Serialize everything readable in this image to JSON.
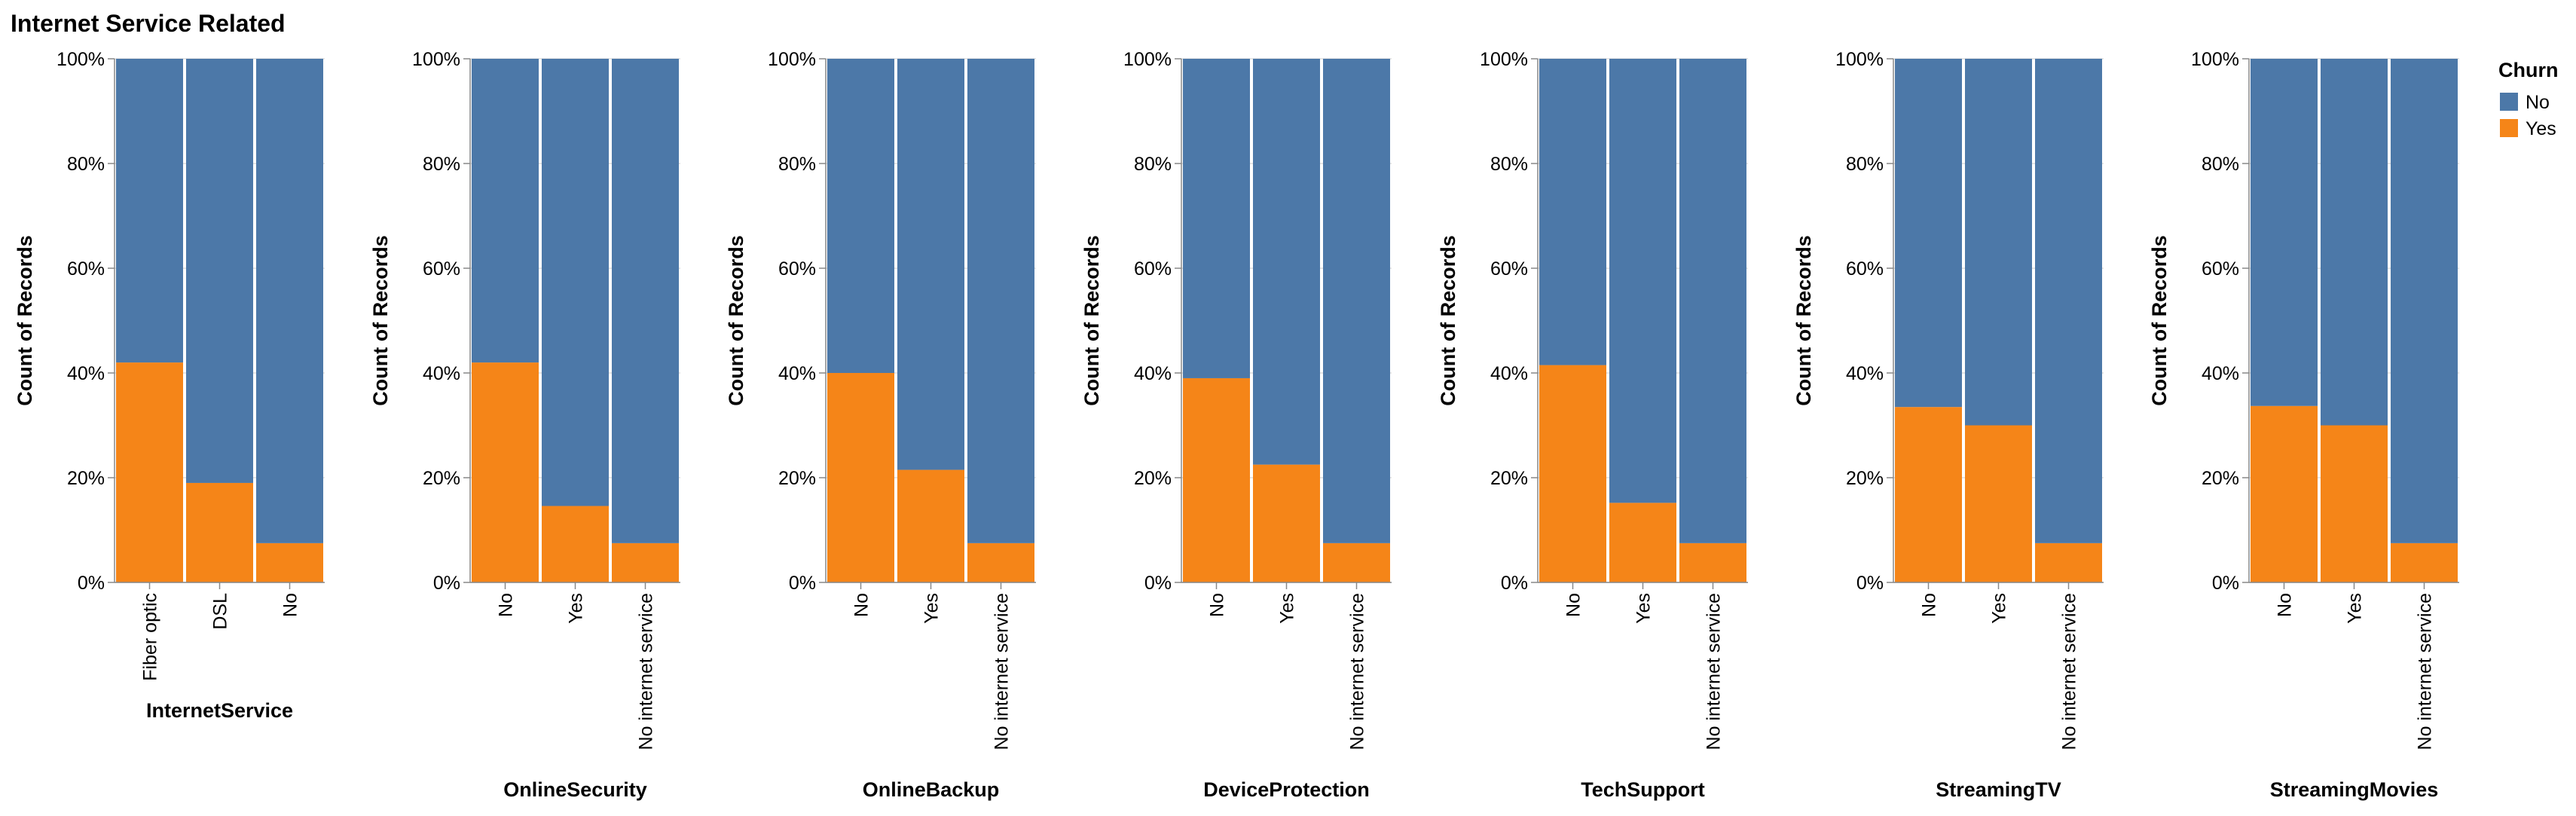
{
  "chart_data": {
    "type": "bar",
    "stacked": "normalize",
    "title": "Internet Service Related",
    "ylabel": "Count of Records",
    "ylim": [
      0,
      1
    ],
    "yticks": [
      "0%",
      "20%",
      "40%",
      "60%",
      "80%",
      "100%"
    ],
    "grid": true,
    "legend": {
      "title": "Churn",
      "placement": "top-right",
      "entries": [
        {
          "name": "No",
          "color": "#4c78a8"
        },
        {
          "name": "Yes",
          "color": "#f58518"
        }
      ]
    },
    "colors": {
      "No": "#4c78a8",
      "Yes": "#f58518"
    },
    "facets": [
      {
        "xlabel": "InternetService",
        "categories": [
          "Fiber optic",
          "DSL",
          "No"
        ],
        "series": [
          {
            "name": "Yes",
            "values": [
              0.42,
              0.19,
              0.075
            ]
          },
          {
            "name": "No",
            "values": [
              0.58,
              0.81,
              0.925
            ]
          }
        ]
      },
      {
        "xlabel": "OnlineSecurity",
        "categories": [
          "No",
          "Yes",
          "No internet service"
        ],
        "series": [
          {
            "name": "Yes",
            "values": [
              0.42,
              0.146,
              0.075
            ]
          },
          {
            "name": "No",
            "values": [
              0.58,
              0.854,
              0.925
            ]
          }
        ]
      },
      {
        "xlabel": "OnlineBackup",
        "categories": [
          "No",
          "Yes",
          "No internet service"
        ],
        "series": [
          {
            "name": "Yes",
            "values": [
              0.4,
              0.215,
              0.075
            ]
          },
          {
            "name": "No",
            "values": [
              0.6,
              0.785,
              0.925
            ]
          }
        ]
      },
      {
        "xlabel": "DeviceProtection",
        "categories": [
          "No",
          "Yes",
          "No internet service"
        ],
        "series": [
          {
            "name": "Yes",
            "values": [
              0.39,
              0.225,
              0.075
            ]
          },
          {
            "name": "No",
            "values": [
              0.61,
              0.775,
              0.925
            ]
          }
        ]
      },
      {
        "xlabel": "TechSupport",
        "categories": [
          "No",
          "Yes",
          "No internet service"
        ],
        "series": [
          {
            "name": "Yes",
            "values": [
              0.415,
              0.152,
              0.075
            ]
          },
          {
            "name": "No",
            "values": [
              0.585,
              0.848,
              0.925
            ]
          }
        ]
      },
      {
        "xlabel": "StreamingTV",
        "categories": [
          "No",
          "Yes",
          "No internet service"
        ],
        "series": [
          {
            "name": "Yes",
            "values": [
              0.335,
              0.3,
              0.075
            ]
          },
          {
            "name": "No",
            "values": [
              0.665,
              0.7,
              0.925
            ]
          }
        ]
      },
      {
        "xlabel": "StreamingMovies",
        "categories": [
          "No",
          "Yes",
          "No internet service"
        ],
        "series": [
          {
            "name": "Yes",
            "values": [
              0.337,
              0.3,
              0.075
            ]
          },
          {
            "name": "No",
            "values": [
              0.663,
              0.7,
              0.925
            ]
          }
        ]
      }
    ]
  }
}
